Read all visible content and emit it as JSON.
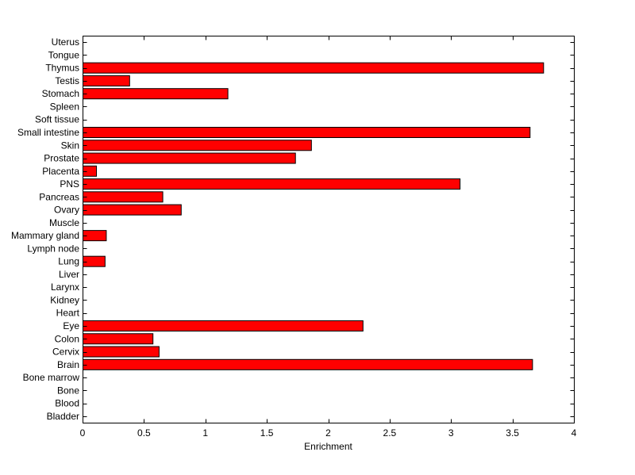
{
  "chart_data": {
    "type": "bar",
    "orientation": "horizontal",
    "categories": [
      "Bladder",
      "Blood",
      "Bone",
      "Bone marrow",
      "Brain",
      "Cervix",
      "Colon",
      "Eye",
      "Heart",
      "Kidney",
      "Larynx",
      "Liver",
      "Lung",
      "Lymph node",
      "Mammary gland",
      "Muscle",
      "Ovary",
      "Pancreas",
      "PNS",
      "Placenta",
      "Prostate",
      "Skin",
      "Small intestine",
      "Soft tissue",
      "Spleen",
      "Stomach",
      "Testis",
      "Thymus",
      "Tongue",
      "Uterus"
    ],
    "values": [
      0,
      0,
      0,
      0,
      3.66,
      0.62,
      0.57,
      2.28,
      0,
      0,
      0,
      0,
      0.18,
      0,
      0.19,
      0,
      0.8,
      0.65,
      3.07,
      0.11,
      1.73,
      1.86,
      3.64,
      0,
      0,
      1.18,
      0.38,
      3.75,
      0,
      0
    ],
    "xlabel": "Enrichment",
    "ylabel": "",
    "title": "",
    "xlim": [
      0,
      4
    ],
    "xticks": [
      0,
      0.5,
      1,
      1.5,
      2,
      2.5,
      3,
      3.5,
      4
    ],
    "xtick_labels": [
      "0",
      "0.5",
      "1",
      "1.5",
      "2",
      "2.5",
      "3",
      "3.5",
      "4"
    ],
    "grid": false,
    "bar_color": "#ff0000",
    "edge_color": "#000000"
  }
}
